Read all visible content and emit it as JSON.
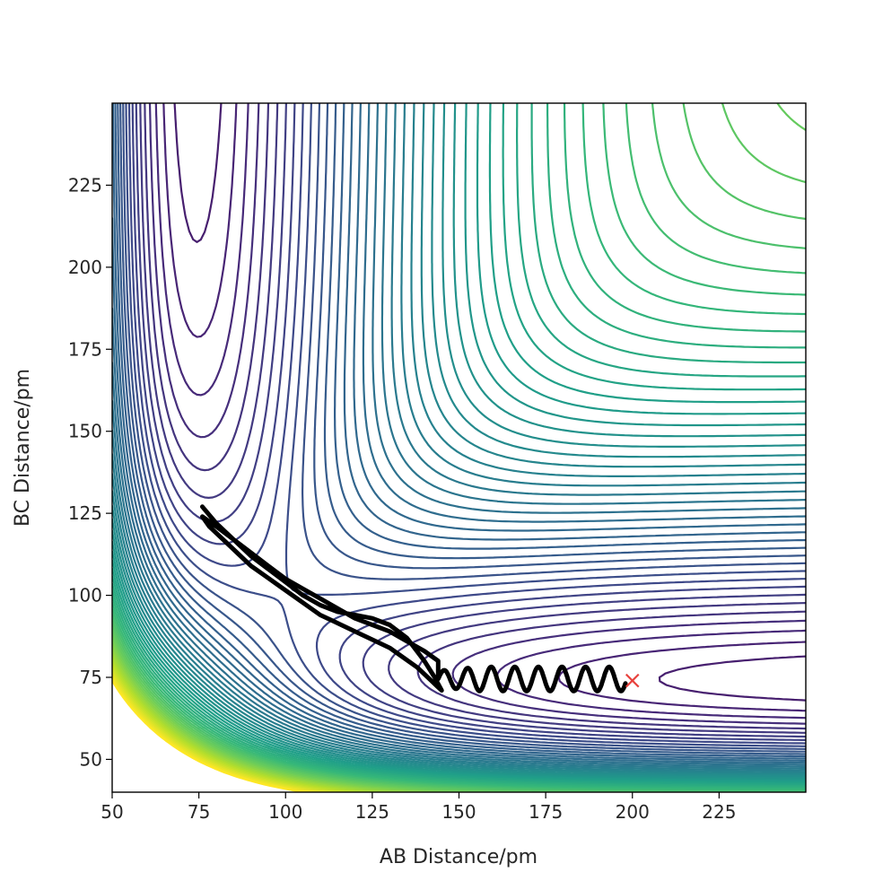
{
  "chart_data": {
    "type": "contour",
    "title": "",
    "xlabel": "AB Distance/pm",
    "ylabel": "BC Distance/pm",
    "xlim": [
      50,
      250
    ],
    "ylim": [
      40,
      250
    ],
    "x_ticks": [
      50,
      75,
      100,
      125,
      150,
      175,
      200,
      225
    ],
    "y_ticks": [
      50,
      75,
      100,
      125,
      150,
      175,
      200,
      225
    ],
    "grid": false,
    "colormap": "viridis",
    "contour_level_count": 60,
    "trajectory": {
      "color": "#000000",
      "points": [
        [
          76,
          127
        ],
        [
          80,
          122
        ],
        [
          85,
          117
        ],
        [
          90,
          112
        ],
        [
          95,
          108
        ],
        [
          100,
          104
        ],
        [
          105,
          100
        ],
        [
          110,
          97
        ],
        [
          115,
          95
        ],
        [
          120,
          94
        ],
        [
          125,
          93
        ],
        [
          130,
          91
        ],
        [
          135,
          87
        ],
        [
          140,
          80
        ],
        [
          143,
          75
        ],
        [
          145,
          71
        ],
        [
          144,
          72
        ],
        [
          142,
          74
        ],
        [
          138,
          78
        ],
        [
          134,
          81
        ],
        [
          130,
          84
        ],
        [
          126,
          86
        ],
        [
          122,
          88
        ],
        [
          118,
          90
        ],
        [
          114,
          92
        ],
        [
          110,
          94
        ],
        [
          106,
          97
        ],
        [
          102,
          100
        ],
        [
          98,
          103
        ],
        [
          94,
          106
        ],
        [
          90,
          109
        ],
        [
          86,
          113
        ],
        [
          82,
          117
        ],
        [
          78,
          121
        ],
        [
          76,
          124
        ],
        [
          80,
          121
        ],
        [
          85,
          117
        ],
        [
          90,
          113
        ],
        [
          95,
          109
        ],
        [
          100,
          105
        ],
        [
          105,
          102
        ],
        [
          110,
          99
        ],
        [
          115,
          96
        ],
        [
          120,
          93
        ],
        [
          125,
          91
        ],
        [
          130,
          89
        ],
        [
          135,
          86
        ],
        [
          140,
          83
        ],
        [
          144,
          80
        ]
      ]
    },
    "marker": {
      "type": "x",
      "color": "#e8413c",
      "x": 200,
      "y": 74
    }
  }
}
